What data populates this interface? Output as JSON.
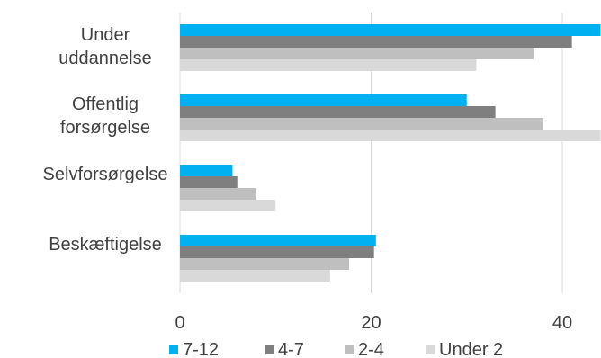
{
  "chart_data": {
    "type": "bar",
    "orientation": "horizontal",
    "categories": [
      [
        "Under",
        "uddannelse"
      ],
      [
        "Offentlig",
        "forsørgelse"
      ],
      [
        "Selvforsørgelse"
      ],
      [
        "Beskæftigelse"
      ]
    ],
    "category_ids": [
      "under-uddannelse",
      "offentlig-forsorgelse",
      "selvforsorgelse",
      "beskaeftigelse"
    ],
    "series": [
      {
        "name": "7-12",
        "color": "#00B0F0",
        "values": [
          44,
          30,
          5.5,
          20.5
        ]
      },
      {
        "name": "4-7",
        "color": "#7F7F7F",
        "values": [
          41,
          33,
          6,
          20.3
        ]
      },
      {
        "name": "2-4",
        "color": "#BFBFBF",
        "values": [
          37,
          38,
          8,
          17.7
        ]
      },
      {
        "name": "Under 2",
        "color": "#D9D9D9",
        "values": [
          31,
          44,
          10,
          15.7
        ]
      }
    ],
    "xlim": [
      0,
      44
    ],
    "xticks": [
      0,
      20,
      40
    ],
    "grid": true,
    "legend_position": "bottom",
    "title": "",
    "xlabel": "",
    "ylabel": ""
  }
}
